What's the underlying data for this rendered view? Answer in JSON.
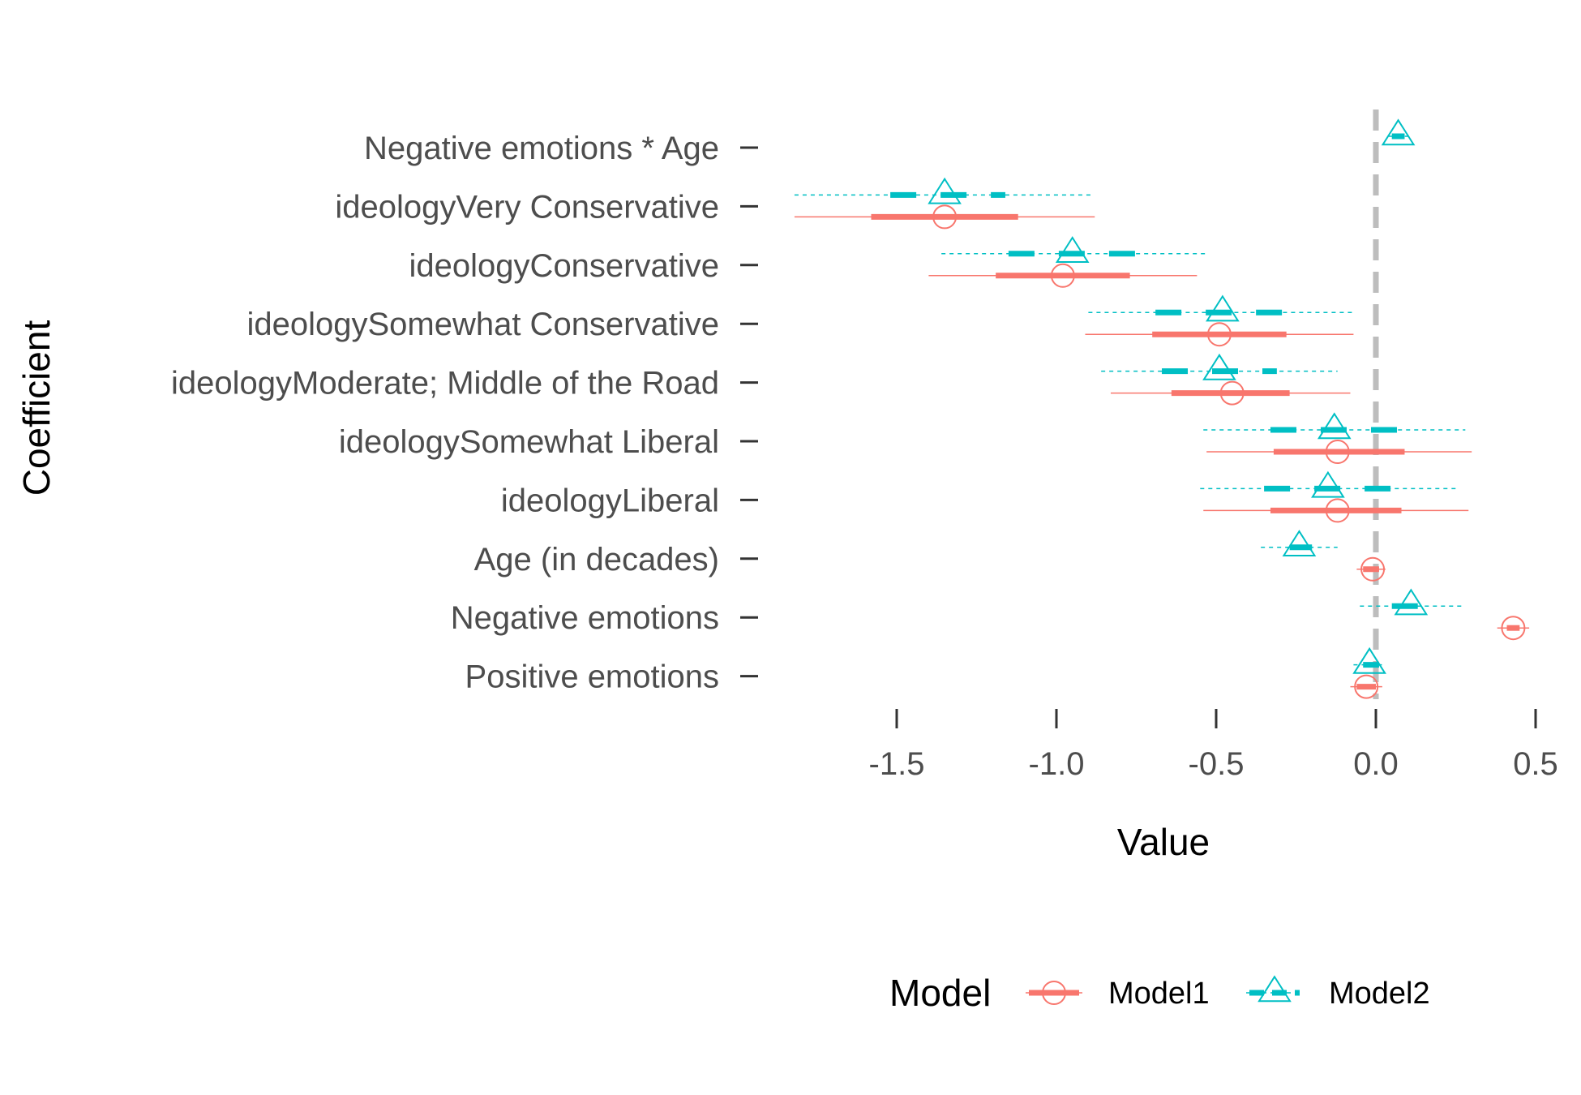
{
  "chart_data": {
    "type": "coefficient_plot",
    "xlabel": "Value",
    "ylabel": "Coefficient",
    "xlim": [
      -1.9,
      0.55
    ],
    "x_ticks": [
      -1.5,
      -1.0,
      -0.5,
      0.0,
      0.5
    ],
    "x_tick_labels": [
      "-1.5",
      "-1.0",
      "-0.5",
      "0.0",
      "0.5"
    ],
    "reference_line": 0,
    "grid": false,
    "legend": {
      "title": "Model",
      "position": "bottom"
    },
    "categories": [
      "Positive emotions",
      "Negative emotions",
      "Age (in decades)",
      "ideologyLiberal",
      "ideologySomewhat Liberal",
      "ideologyModerate; Middle of the Road",
      "ideologySomewhat Conservative",
      "ideologyConservative",
      "ideologyVery Conservative",
      "Negative emotions * Age"
    ],
    "series": [
      {
        "name": "Model1",
        "color": "#F8766D",
        "marker": "circle",
        "points": [
          {
            "category": "Positive emotions",
            "value": -0.03,
            "inner": [
              -0.06,
              0.0
            ],
            "outer": [
              -0.08,
              0.02
            ]
          },
          {
            "category": "Negative emotions",
            "value": 0.43,
            "inner": [
              0.41,
              0.45
            ],
            "outer": [
              0.38,
              0.48
            ]
          },
          {
            "category": "Age (in decades)",
            "value": -0.01,
            "inner": [
              -0.04,
              0.01
            ],
            "outer": [
              -0.06,
              0.03
            ]
          },
          {
            "category": "ideologyLiberal",
            "value": -0.12,
            "inner": [
              -0.33,
              0.08
            ],
            "outer": [
              -0.54,
              0.29
            ]
          },
          {
            "category": "ideologySomewhat Liberal",
            "value": -0.12,
            "inner": [
              -0.32,
              0.09
            ],
            "outer": [
              -0.53,
              0.3
            ]
          },
          {
            "category": "ideologyModerate; Middle of the Road",
            "value": -0.45,
            "inner": [
              -0.64,
              -0.27
            ],
            "outer": [
              -0.83,
              -0.08
            ]
          },
          {
            "category": "ideologySomewhat Conservative",
            "value": -0.49,
            "inner": [
              -0.7,
              -0.28
            ],
            "outer": [
              -0.91,
              -0.07
            ]
          },
          {
            "category": "ideologyConservative",
            "value": -0.98,
            "inner": [
              -1.19,
              -0.77
            ],
            "outer": [
              -1.4,
              -0.56
            ]
          },
          {
            "category": "ideologyVery Conservative",
            "value": -1.35,
            "inner": [
              -1.58,
              -1.12
            ],
            "outer": [
              -1.82,
              -0.88
            ]
          }
        ]
      },
      {
        "name": "Model2",
        "color": "#00BFC4",
        "marker": "triangle",
        "points": [
          {
            "category": "Positive emotions",
            "value": -0.02,
            "inner": [
              -0.04,
              0.01
            ],
            "outer": [
              -0.07,
              0.03
            ]
          },
          {
            "category": "Negative emotions",
            "value": 0.11,
            "inner": [
              0.05,
              0.18
            ],
            "outer": [
              -0.05,
              0.27
            ]
          },
          {
            "category": "Age (in decades)",
            "value": -0.24,
            "inner": [
              -0.27,
              -0.2
            ],
            "outer": [
              -0.36,
              -0.12
            ]
          },
          {
            "category": "ideologyLiberal",
            "value": -0.15,
            "inner": [
              -0.35,
              0.05
            ],
            "outer": [
              -0.55,
              0.26
            ]
          },
          {
            "category": "ideologySomewhat Liberal",
            "value": -0.13,
            "inner": [
              -0.33,
              0.07
            ],
            "outer": [
              -0.54,
              0.28
            ]
          },
          {
            "category": "ideologyModerate; Middle of the Road",
            "value": -0.49,
            "inner": [
              -0.67,
              -0.31
            ],
            "outer": [
              -0.86,
              -0.12
            ]
          },
          {
            "category": "ideologySomewhat Conservative",
            "value": -0.48,
            "inner": [
              -0.69,
              -0.28
            ],
            "outer": [
              -0.9,
              -0.07
            ]
          },
          {
            "category": "ideologyConservative",
            "value": -0.95,
            "inner": [
              -1.15,
              -0.74
            ],
            "outer": [
              -1.36,
              -0.53
            ]
          },
          {
            "category": "ideologyVery Conservative",
            "value": -1.35,
            "inner": [
              -1.52,
              -1.16
            ],
            "outer": [
              -1.82,
              -0.89
            ]
          },
          {
            "category": "Negative emotions * Age",
            "value": 0.07,
            "inner": [
              0.05,
              0.09
            ],
            "outer": [
              0.04,
              0.1
            ]
          }
        ]
      }
    ]
  }
}
